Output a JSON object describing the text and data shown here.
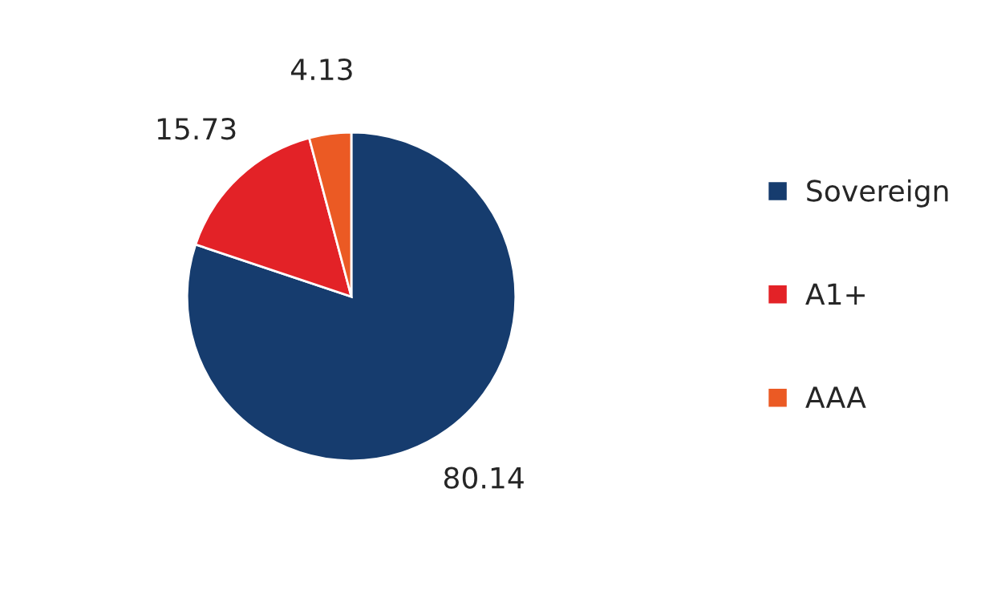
{
  "chart_data": {
    "type": "pie",
    "categories": [
      "Sovereign",
      "A1+",
      "AAA"
    ],
    "values": [
      80.14,
      15.73,
      4.13
    ],
    "colors": [
      "#163c6e",
      "#e32227",
      "#eb5a24"
    ],
    "data_labels": true,
    "legend": "right"
  }
}
